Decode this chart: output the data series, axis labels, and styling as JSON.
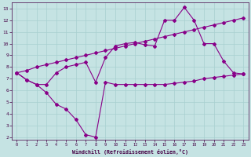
{
  "bg_color": "#c5e3e3",
  "grid_color": "#a8d0d0",
  "line_color": "#880088",
  "xlabel": "Windchill (Refroidissement éolien,°C)",
  "xlim": [
    -0.5,
    23.5
  ],
  "ylim": [
    1.8,
    13.5
  ],
  "xticks": [
    0,
    1,
    2,
    3,
    4,
    5,
    6,
    7,
    8,
    9,
    10,
    11,
    12,
    13,
    14,
    15,
    16,
    17,
    18,
    19,
    20,
    21,
    22,
    23
  ],
  "yticks": [
    2,
    3,
    4,
    5,
    6,
    7,
    8,
    9,
    10,
    11,
    12,
    13
  ],
  "line1_x": [
    0,
    1,
    2,
    3,
    4,
    5,
    6,
    7,
    8,
    9,
    10,
    11,
    12,
    13,
    14,
    15,
    16,
    17,
    18,
    19,
    20,
    21,
    22,
    23
  ],
  "line1_y": [
    7.5,
    6.9,
    6.5,
    5.8,
    4.8,
    4.4,
    3.5,
    2.2,
    2.0,
    6.7,
    6.5,
    6.5,
    6.5,
    6.5,
    6.5,
    6.5,
    6.6,
    6.7,
    6.8,
    7.0,
    7.1,
    7.2,
    7.3,
    7.4
  ],
  "line2_x": [
    0,
    1,
    2,
    3,
    4,
    5,
    6,
    7,
    8,
    9,
    10,
    11,
    12,
    13,
    14,
    15,
    16,
    17,
    18,
    19,
    20,
    21,
    22,
    23
  ],
  "line2_y": [
    7.5,
    7.7,
    8.0,
    8.2,
    8.4,
    8.6,
    8.8,
    9.0,
    9.2,
    9.4,
    9.6,
    9.8,
    10.0,
    10.2,
    10.4,
    10.6,
    10.8,
    11.0,
    11.2,
    11.4,
    11.6,
    11.8,
    12.0,
    12.2
  ],
  "line3_x": [
    0,
    1,
    2,
    3,
    4,
    5,
    6,
    7,
    8,
    9,
    10,
    11,
    12,
    13,
    14,
    15,
    16,
    17,
    18,
    19,
    20,
    21,
    22,
    23
  ],
  "line3_y": [
    7.5,
    6.9,
    6.5,
    6.5,
    7.5,
    8.0,
    8.2,
    8.4,
    6.7,
    8.8,
    9.8,
    10.0,
    10.1,
    9.9,
    9.8,
    12.0,
    12.0,
    13.1,
    12.0,
    10.0,
    10.0,
    8.5,
    7.5,
    7.4
  ]
}
